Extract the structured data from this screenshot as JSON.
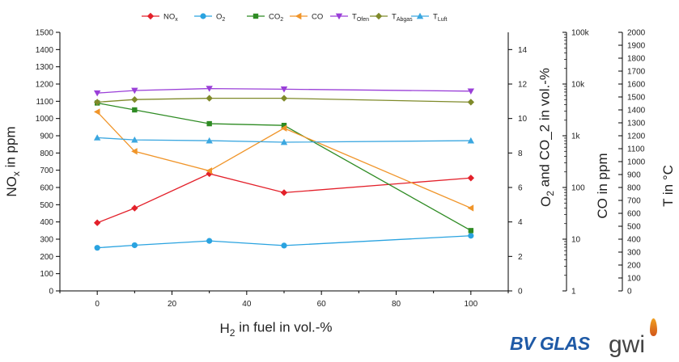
{
  "chart_data": {
    "type": "line",
    "x": [
      0,
      10,
      30,
      50,
      100
    ],
    "xlabel": "H_2 in fuel in vol.-%",
    "xlim": [
      -10,
      110
    ],
    "xticks": [
      "0",
      "20",
      "40",
      "60",
      "80",
      "100"
    ],
    "legend_placement": "top-center",
    "grid": false,
    "axes": [
      {
        "id": "nox",
        "title": "NO_x in ppm",
        "scale": "linear",
        "range": [
          0,
          1500
        ],
        "ticks": [
          "0",
          "100",
          "200",
          "300",
          "400",
          "500",
          "600",
          "700",
          "800",
          "900",
          "1000",
          "1100",
          "1200",
          "1300",
          "1400",
          "1500"
        ]
      },
      {
        "id": "o2co2",
        "title": "O_2 and CO_2 in vol.-%",
        "scale": "linear",
        "range": [
          0,
          15
        ],
        "ticks": [
          "0",
          "2",
          "4",
          "6",
          "8",
          "10",
          "12",
          "14"
        ]
      },
      {
        "id": "co",
        "title": "CO in ppm",
        "scale": "log",
        "range": [
          1,
          100000
        ],
        "ticks": [
          "1",
          "10",
          "100",
          "1k",
          "10k",
          "100k"
        ]
      },
      {
        "id": "temp",
        "title": "T in °C",
        "scale": "linear",
        "range": [
          0,
          2000
        ],
        "ticks": [
          "0",
          "100",
          "200",
          "300",
          "400",
          "500",
          "600",
          "700",
          "800",
          "900",
          "1000",
          "1100",
          "1200",
          "1300",
          "1400",
          "1500",
          "1600",
          "1700",
          "1800",
          "1900",
          "2000"
        ]
      }
    ],
    "series": [
      {
        "name": "NO_x",
        "axis": "nox",
        "color": "#e3202a",
        "marker": "diamond",
        "values": [
          395,
          480,
          680,
          570,
          655
        ]
      },
      {
        "name": "O_2",
        "axis": "o2co2",
        "color": "#2aa3e0",
        "marker": "circle",
        "values": [
          2.5,
          2.65,
          2.9,
          2.63,
          3.2
        ]
      },
      {
        "name": "CO_2",
        "axis": "o2co2",
        "color": "#2e8b23",
        "marker": "square",
        "values": [
          10.9,
          10.5,
          9.7,
          9.6,
          3.5
        ]
      },
      {
        "name": "CO",
        "axis": "co",
        "color": "#f0952a",
        "marker": "triangle-left",
        "values": [
          2900,
          500,
          210,
          1400,
          40
        ]
      },
      {
        "name": "T_Ofen",
        "axis": "temp",
        "color": "#9a3fd8",
        "marker": "triangle-down",
        "values": [
          1530,
          1550,
          1565,
          1560,
          1545
        ]
      },
      {
        "name": "T_Abgas",
        "axis": "temp",
        "color": "#7f8a2a",
        "marker": "diamond",
        "values": [
          1460,
          1480,
          1490,
          1490,
          1460
        ]
      },
      {
        "name": "T_Luft",
        "axis": "temp",
        "color": "#3ba7e0",
        "marker": "triangle-up",
        "values": [
          1185,
          1168,
          1162,
          1150,
          1162
        ]
      }
    ]
  },
  "logos": {
    "bv_glas": "BV GLAS",
    "gwi": "gwi"
  }
}
